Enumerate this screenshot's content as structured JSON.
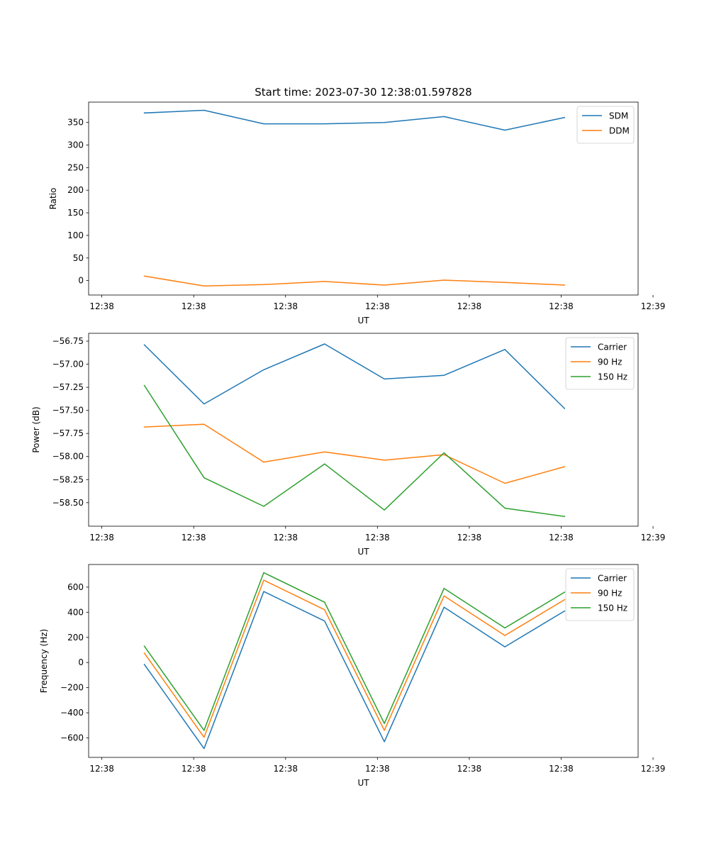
{
  "figure_title": "Start time: 2023-07-30 12:38:01.597828",
  "chart_data": [
    {
      "type": "line",
      "id": "ratio",
      "title": "Start time: 2023-07-30 12:38:01.597828",
      "xlabel": "UT",
      "ylabel": "Ratio",
      "xlim": [
        -1.15,
        46.7
      ],
      "ylim": [
        -32,
        395
      ],
      "xticks": [
        0,
        8,
        16,
        24,
        32,
        40,
        48
      ],
      "xtick_labels": [
        "12:38",
        "12:38",
        "12:38",
        "12:38",
        "12:38",
        "12:38",
        "12:39"
      ],
      "yticks": [
        0,
        50,
        100,
        150,
        200,
        250,
        300,
        350
      ],
      "ytick_labels": [
        "0",
        "50",
        "100",
        "150",
        "200",
        "250",
        "300",
        "350"
      ],
      "legend_position": "top-right",
      "x": [
        3.7,
        8.9,
        14.1,
        19.4,
        24.6,
        29.8,
        35.1,
        40.3
      ],
      "series": [
        {
          "name": "SDM",
          "color": "#1f77b4",
          "values": [
            371,
            377,
            347,
            347,
            350,
            363,
            333,
            361
          ]
        },
        {
          "name": "DDM",
          "color": "#ff7f0e",
          "values": [
            10,
            -12,
            -9,
            -2,
            -10,
            1,
            -4,
            -10
          ]
        }
      ]
    },
    {
      "type": "line",
      "id": "power",
      "title": "",
      "xlabel": "UT",
      "ylabel": "Power (dB)",
      "xlim": [
        -1.15,
        46.7
      ],
      "ylim": [
        -58.755,
        -56.665
      ],
      "xticks": [
        0,
        8,
        16,
        24,
        32,
        40,
        48
      ],
      "xtick_labels": [
        "12:38",
        "12:38",
        "12:38",
        "12:38",
        "12:38",
        "12:38",
        "12:39"
      ],
      "yticks": [
        -56.75,
        -57.0,
        -57.25,
        -57.5,
        -57.75,
        -58.0,
        -58.25,
        -58.5
      ],
      "ytick_labels": [
        "−56.75",
        "−57.00",
        "−57.25",
        "−57.50",
        "−57.75",
        "−58.00",
        "−58.25",
        "−58.50"
      ],
      "legend_position": "top-right",
      "x": [
        3.7,
        8.9,
        14.1,
        19.4,
        24.6,
        29.8,
        35.1,
        40.3
      ],
      "series": [
        {
          "name": "Carrier",
          "color": "#1f77b4",
          "values": [
            -56.79,
            -57.43,
            -57.06,
            -56.78,
            -57.16,
            -57.12,
            -56.84,
            -57.48
          ]
        },
        {
          "name": "90 Hz",
          "color": "#ff7f0e",
          "values": [
            -57.68,
            -57.65,
            -58.06,
            -57.95,
            -58.04,
            -57.98,
            -58.29,
            -58.11
          ]
        },
        {
          "name": "150 Hz",
          "color": "#2ca02c",
          "values": [
            -57.23,
            -58.23,
            -58.54,
            -58.08,
            -58.58,
            -57.96,
            -58.56,
            -58.65
          ]
        }
      ]
    },
    {
      "type": "line",
      "id": "frequency",
      "title": "",
      "xlabel": "UT",
      "ylabel": "Frequency (Hz)",
      "xlim": [
        -1.15,
        46.7
      ],
      "ylim": [
        -755,
        780
      ],
      "xticks": [
        0,
        8,
        16,
        24,
        32,
        40,
        48
      ],
      "xtick_labels": [
        "12:38",
        "12:38",
        "12:38",
        "12:38",
        "12:38",
        "12:38",
        "12:39"
      ],
      "yticks": [
        -600,
        -400,
        -200,
        0,
        200,
        400,
        600
      ],
      "ytick_labels": [
        "−600",
        "−400",
        "−200",
        "0",
        "200",
        "400",
        "600"
      ],
      "legend_position": "top-right",
      "x": [
        3.7,
        8.9,
        14.1,
        19.4,
        24.6,
        29.8,
        35.1,
        40.3
      ],
      "series": [
        {
          "name": "Carrier",
          "color": "#1f77b4",
          "values": [
            -15,
            -685,
            565,
            330,
            -630,
            440,
            125,
            410
          ]
        },
        {
          "name": "90 Hz",
          "color": "#ff7f0e",
          "values": [
            75,
            -595,
            655,
            420,
            -540,
            530,
            215,
            500
          ]
        },
        {
          "name": "150 Hz",
          "color": "#2ca02c",
          "values": [
            130,
            -540,
            715,
            480,
            -485,
            590,
            275,
            560
          ]
        }
      ]
    }
  ]
}
